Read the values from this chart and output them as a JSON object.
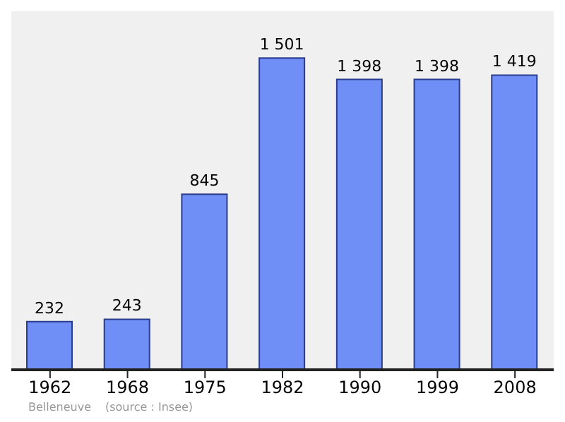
{
  "chart_data": {
    "type": "bar",
    "categories": [
      "1962",
      "1968",
      "1975",
      "1982",
      "1990",
      "1999",
      "2008"
    ],
    "values": [
      232,
      243,
      845,
      1501,
      1398,
      1398,
      1419
    ],
    "value_labels": [
      "232",
      "243",
      "845",
      "1 501",
      "1 398",
      "1 398",
      "1 419"
    ],
    "color": "#6f8ff7",
    "annotations": [
      "Belleneuve",
      "(source : Insee)"
    ]
  }
}
